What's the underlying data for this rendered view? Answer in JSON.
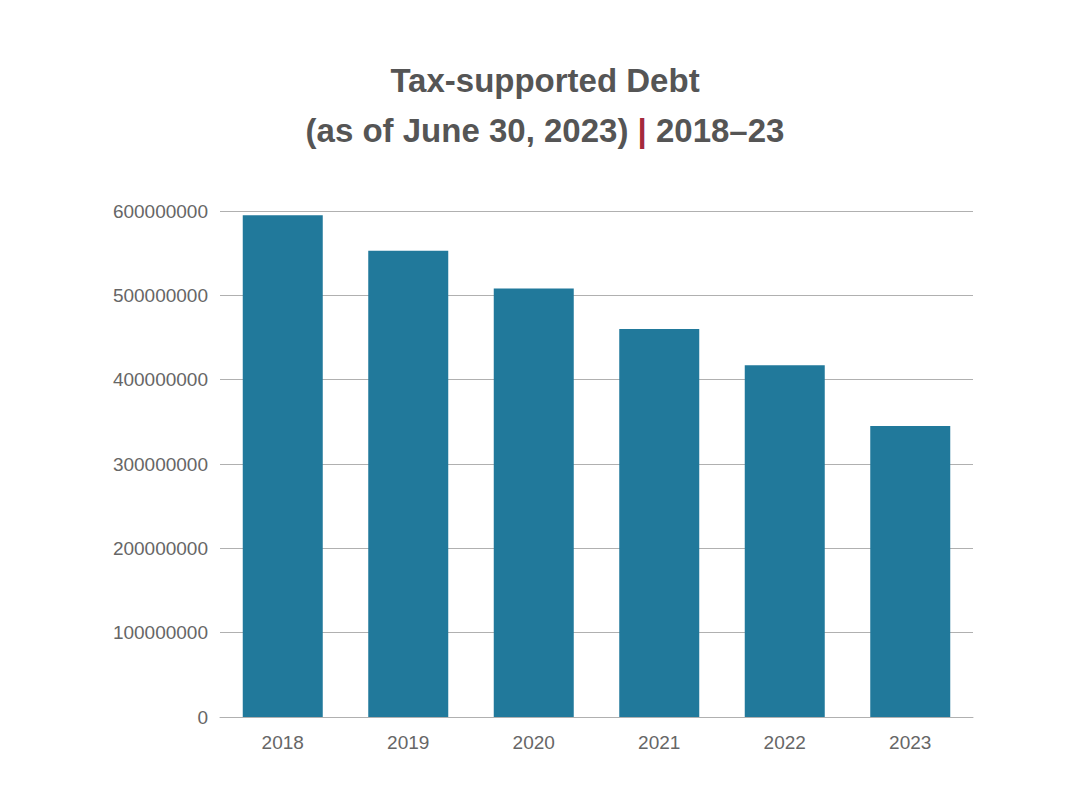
{
  "chart_data": {
    "type": "bar",
    "title": "Tax-supported Debt\n(as of June 30, 2023) | 2018–23",
    "categories": [
      "2018",
      "2019",
      "2020",
      "2021",
      "2022",
      "2023"
    ],
    "values": [
      595000000,
      553000000,
      508000000,
      460000000,
      417000000,
      345000000
    ],
    "color": "#21799b",
    "ylim": [
      0,
      600000000
    ],
    "yticks": [
      0,
      100000000,
      200000000,
      300000000,
      400000000,
      500000000,
      600000000
    ],
    "grid": true
  }
}
